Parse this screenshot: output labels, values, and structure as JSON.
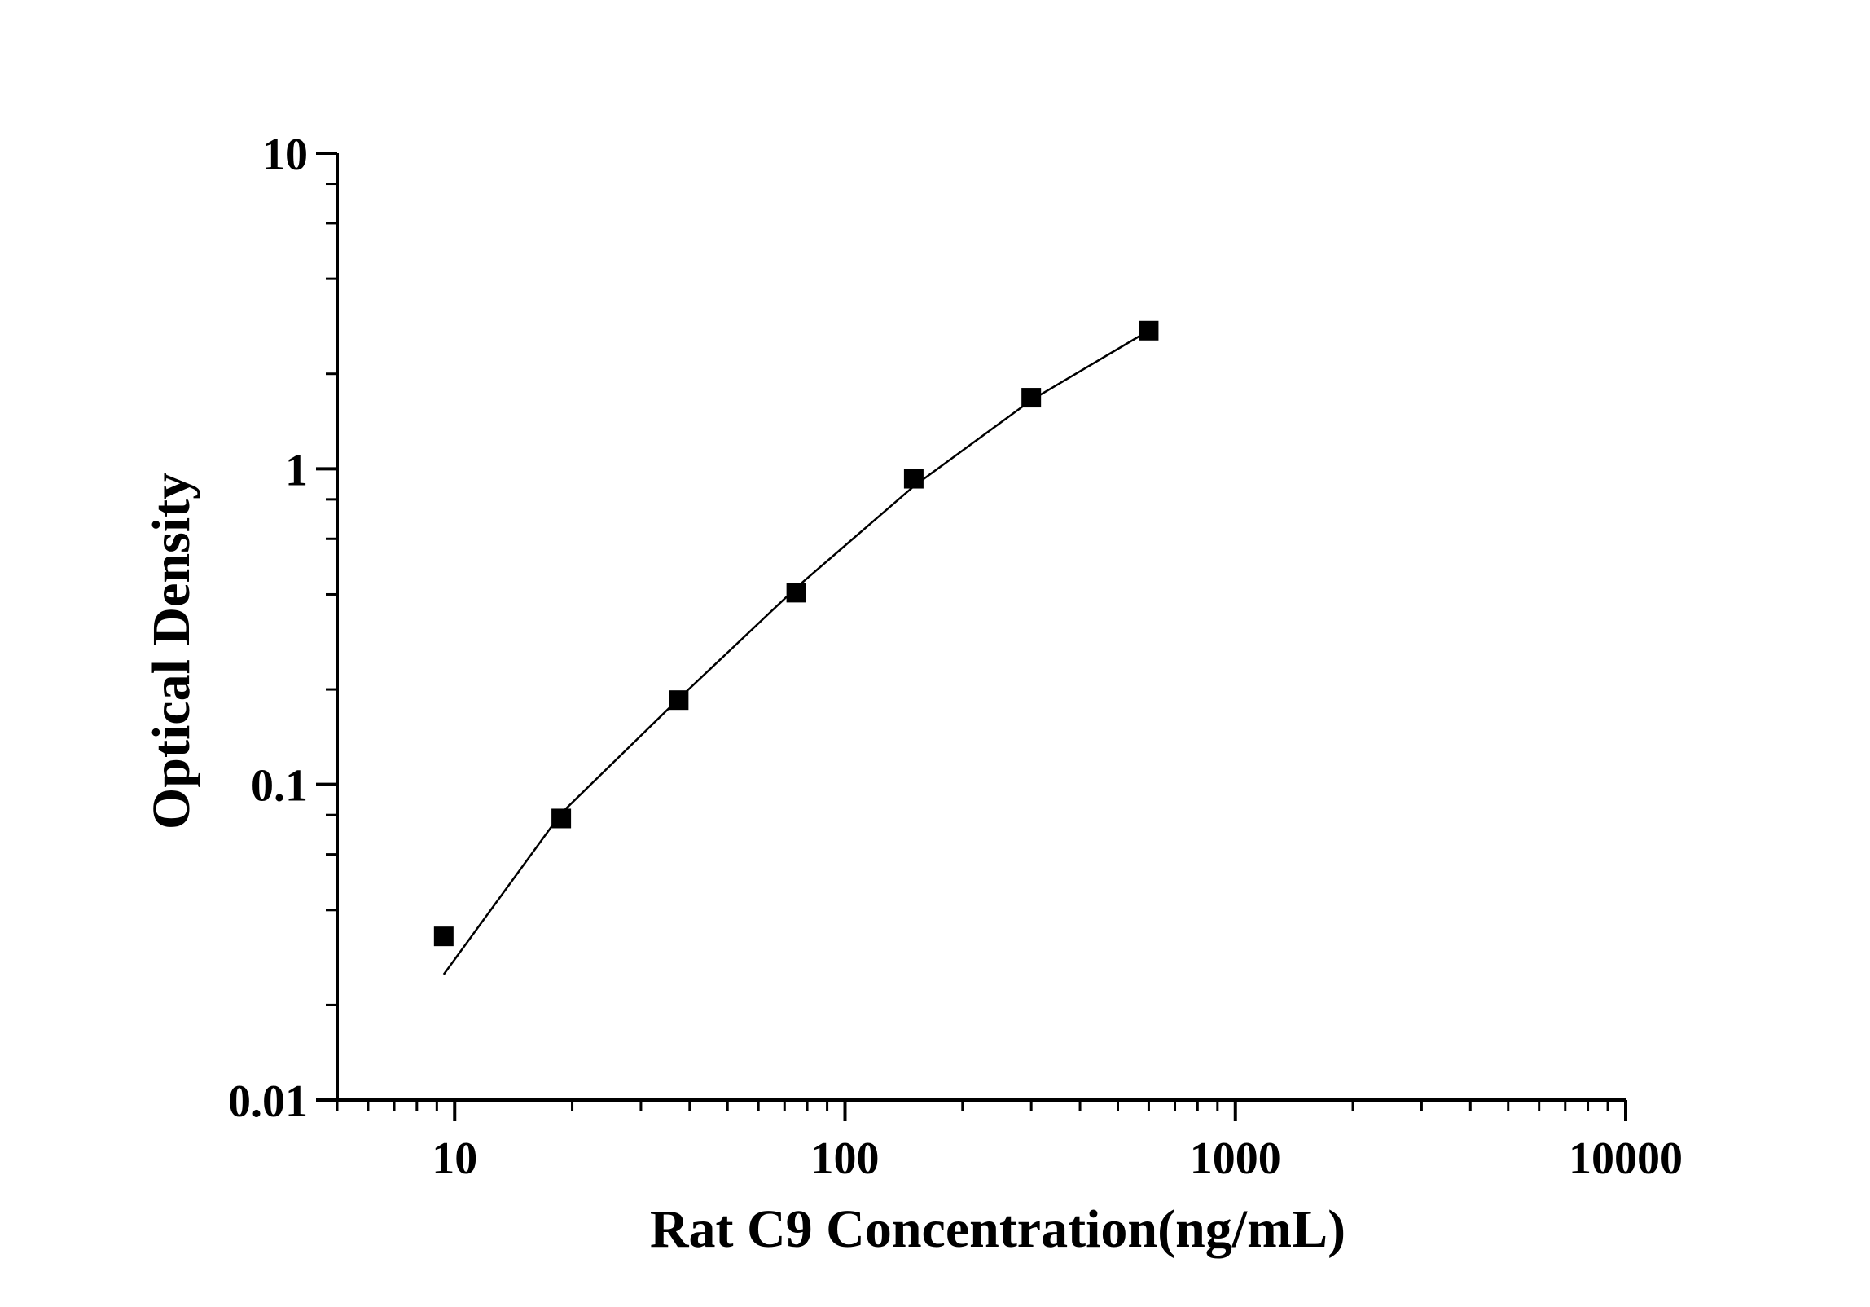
{
  "chart_data": {
    "type": "scatter",
    "title": "",
    "xlabel": "Rat C9 Concentration(ng/mL)",
    "ylabel": "Optical Density",
    "x_scale": "log",
    "y_scale": "log",
    "xlim": [
      5,
      10000
    ],
    "ylim": [
      0.01,
      10
    ],
    "x_ticks": [
      10,
      100,
      1000,
      10000
    ],
    "x_tick_labels": [
      "10",
      "100",
      "1000",
      "10000"
    ],
    "y_ticks": [
      0.01,
      0.1,
      1,
      10
    ],
    "y_tick_labels": [
      "0.01",
      "0.1",
      "1",
      "10"
    ],
    "grid": false,
    "legend": "none",
    "series": [
      {
        "type": "scatter",
        "marker": "square",
        "color": "#000000",
        "x": [
          9.375,
          18.75,
          37.5,
          75,
          150,
          300,
          600
        ],
        "y": [
          0.033,
          0.078,
          0.185,
          0.405,
          0.93,
          1.68,
          2.74
        ]
      },
      {
        "type": "line",
        "color": "#000000",
        "x": [
          9.375,
          18.75,
          37.5,
          75,
          150,
          300,
          600
        ],
        "y": [
          0.025,
          0.081,
          0.187,
          0.42,
          0.88,
          1.65,
          2.74
        ]
      }
    ]
  }
}
